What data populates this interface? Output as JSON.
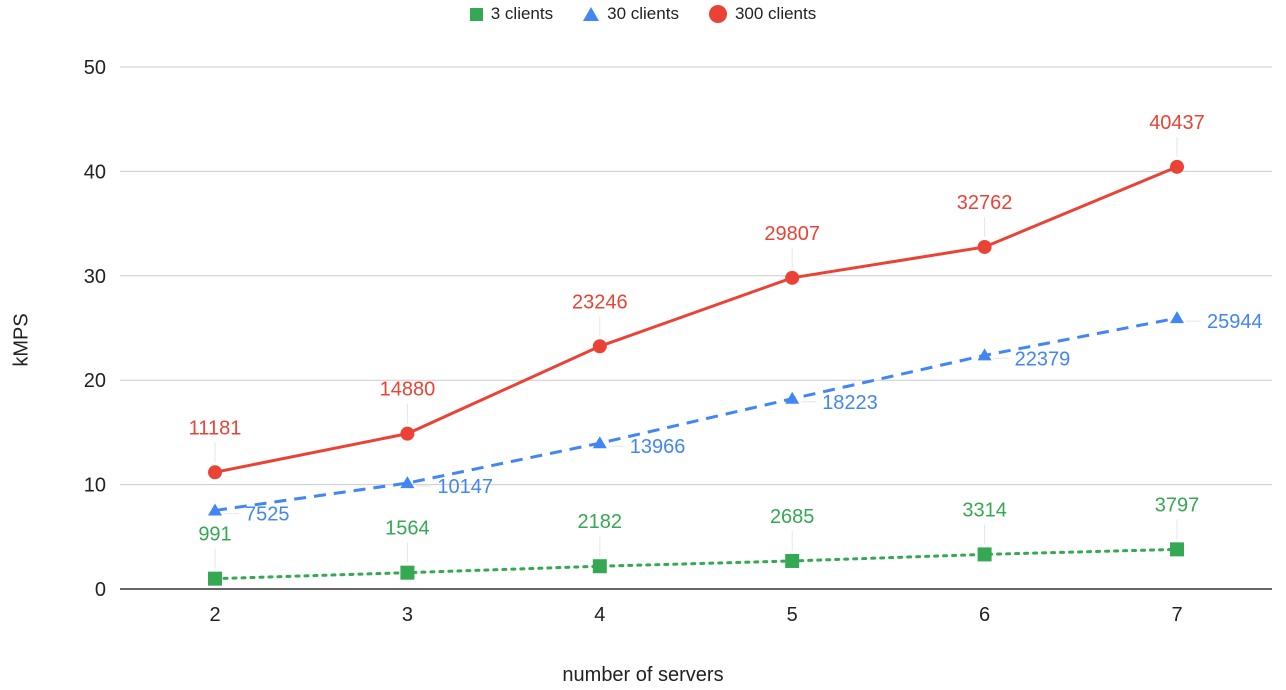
{
  "chart_data": {
    "type": "line",
    "xlabel": "number of servers",
    "ylabel": "kMPS",
    "categories": [
      "2",
      "3",
      "4",
      "5",
      "6",
      "7"
    ],
    "ylim": [
      0,
      50
    ],
    "yticks": [
      "0",
      "10",
      "20",
      "30",
      "40",
      "50"
    ],
    "grid": true,
    "legend_position": "top",
    "series": [
      {
        "name": "3 clients",
        "color": "#34a853",
        "marker": "square",
        "line_style": "dotted",
        "values": [
          0.991,
          1.564,
          2.182,
          2.685,
          3.314,
          3.797
        ],
        "labels": [
          "991",
          "1564",
          "2182",
          "2685",
          "3314",
          "3797"
        ]
      },
      {
        "name": "30 clients",
        "color": "#4285f4",
        "marker": "triangle",
        "line_style": "dashed",
        "values": [
          7.525,
          10.147,
          13.966,
          18.223,
          22.379,
          25.944
        ],
        "labels": [
          "7525",
          "10147",
          "13966",
          "18223",
          "22379",
          "25944"
        ]
      },
      {
        "name": "300 clients",
        "color": "#ea4335",
        "marker": "circle",
        "line_style": "solid",
        "values": [
          11.181,
          14.88,
          23.246,
          29.807,
          32.762,
          40.437
        ],
        "labels": [
          "11181",
          "14880",
          "23246",
          "29807",
          "32762",
          "40437"
        ]
      }
    ]
  }
}
